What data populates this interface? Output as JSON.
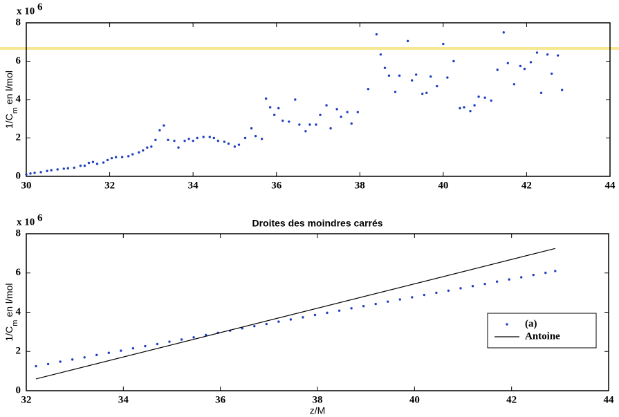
{
  "chart_data": [
    {
      "type": "scatter",
      "y_exponent": "x 10",
      "y_exponent_power": "6",
      "ylabel": "1/C",
      "ylabel_sub": "m",
      "ylabel_rest": "en l/mol",
      "xlim": [
        30,
        44
      ],
      "ylim": [
        0,
        8
      ],
      "xticks": [
        30,
        32,
        34,
        36,
        38,
        40,
        42,
        44
      ],
      "yticks": [
        0,
        2,
        4,
        6,
        8
      ],
      "series": [
        {
          "name": null,
          "color": "#1f3fbf",
          "x": [
            30.0,
            30.1,
            30.2,
            30.35,
            30.5,
            30.6,
            30.75,
            30.9,
            31.0,
            31.15,
            31.3,
            31.4,
            31.5,
            31.6,
            31.7,
            31.85,
            31.95,
            32.05,
            32.15,
            32.3,
            32.45,
            32.55,
            32.7,
            32.8,
            32.9,
            33.0,
            33.1,
            33.2,
            33.3,
            33.4,
            33.55,
            33.65,
            33.8,
            33.9,
            34.0,
            34.1,
            34.25,
            34.4,
            34.5,
            34.6,
            34.75,
            34.85,
            35.0,
            35.1,
            35.25,
            35.4,
            35.5,
            35.65,
            35.75,
            35.85,
            35.95,
            36.05,
            36.15,
            36.3,
            36.45,
            36.55,
            36.7,
            36.8,
            36.95,
            37.05,
            37.2,
            37.3,
            37.45,
            37.55,
            37.7,
            37.8,
            37.95,
            38.2,
            38.4,
            38.5,
            38.6,
            38.7,
            38.85,
            38.95,
            39.15,
            39.25,
            39.35,
            39.5,
            39.6,
            39.7,
            39.85,
            40.0,
            40.1,
            40.25,
            40.4,
            40.5,
            40.65,
            40.75,
            40.85,
            41.0,
            41.15,
            41.3,
            41.45,
            41.55,
            41.7,
            41.85,
            41.95,
            42.1,
            42.25,
            42.35,
            42.5,
            42.6,
            42.75,
            42.85
          ],
          "values": [
            0.1,
            0.15,
            0.18,
            0.22,
            0.28,
            0.32,
            0.36,
            0.4,
            0.42,
            0.45,
            0.55,
            0.55,
            0.7,
            0.75,
            0.65,
            0.72,
            0.85,
            0.95,
            1.0,
            1.0,
            1.05,
            1.15,
            1.25,
            1.35,
            1.5,
            1.55,
            1.9,
            2.4,
            2.65,
            1.9,
            1.85,
            1.5,
            1.85,
            1.95,
            1.85,
            2.0,
            2.05,
            2.05,
            2.0,
            1.85,
            1.8,
            1.7,
            1.55,
            1.65,
            2.0,
            2.5,
            2.1,
            1.95,
            4.05,
            3.6,
            3.2,
            3.55,
            2.9,
            2.85,
            4.0,
            2.7,
            2.35,
            2.7,
            2.7,
            3.2,
            3.7,
            2.5,
            3.5,
            3.1,
            3.35,
            2.75,
            3.35,
            4.55,
            7.4,
            6.35,
            5.65,
            5.25,
            4.4,
            5.25,
            7.05,
            5.0,
            5.3,
            4.3,
            4.35,
            5.2,
            4.7,
            6.9,
            5.15,
            6.0,
            3.55,
            3.6,
            3.4,
            3.7,
            4.15,
            4.1,
            3.95,
            5.55,
            7.5,
            5.9,
            4.8,
            5.75,
            5.6,
            5.95,
            6.45,
            4.35,
            6.35,
            5.35,
            6.3,
            4.5
          ]
        }
      ]
    },
    {
      "type": "scatter",
      "title": "Droites des moindres carrés",
      "xlabel": "z/M",
      "y_exponent": "x 10",
      "y_exponent_power": "6",
      "ylabel": "1/C",
      "ylabel_sub": "m",
      "ylabel_rest": "en l/mol",
      "xlim": [
        32,
        44
      ],
      "ylim": [
        0,
        8
      ],
      "xticks": [
        32,
        34,
        36,
        38,
        40,
        42,
        44
      ],
      "yticks": [
        0,
        2,
        4,
        6,
        8
      ],
      "legend": "lower right",
      "series": [
        {
          "name": "(a)",
          "color": "#1f3fbf",
          "style": "dots",
          "x": [
            32.2,
            32.45,
            32.7,
            32.95,
            33.2,
            33.45,
            33.7,
            33.95,
            34.2,
            34.45,
            34.7,
            34.95,
            35.2,
            35.45,
            35.7,
            35.95,
            36.2,
            36.45,
            36.7,
            36.95,
            37.2,
            37.45,
            37.7,
            37.95,
            38.2,
            38.45,
            38.7,
            38.95,
            39.2,
            39.45,
            39.7,
            39.95,
            40.2,
            40.45,
            40.7,
            40.95,
            41.2,
            41.45,
            41.7,
            41.95,
            42.2,
            42.45,
            42.7,
            42.9
          ],
          "values": [
            1.25,
            1.36,
            1.48,
            1.59,
            1.7,
            1.82,
            1.93,
            2.04,
            2.16,
            2.27,
            2.38,
            2.5,
            2.61,
            2.72,
            2.84,
            2.95,
            3.06,
            3.18,
            3.29,
            3.4,
            3.52,
            3.63,
            3.74,
            3.86,
            3.97,
            4.08,
            4.2,
            4.31,
            4.42,
            4.54,
            4.65,
            4.76,
            4.88,
            4.99,
            5.1,
            5.22,
            5.33,
            5.44,
            5.56,
            5.67,
            5.78,
            5.9,
            6.01,
            6.1
          ]
        },
        {
          "name": "Antoine",
          "color": "#000000",
          "style": "line",
          "x": [
            32.2,
            42.9
          ],
          "values": [
            0.6,
            7.25
          ]
        }
      ]
    }
  ]
}
